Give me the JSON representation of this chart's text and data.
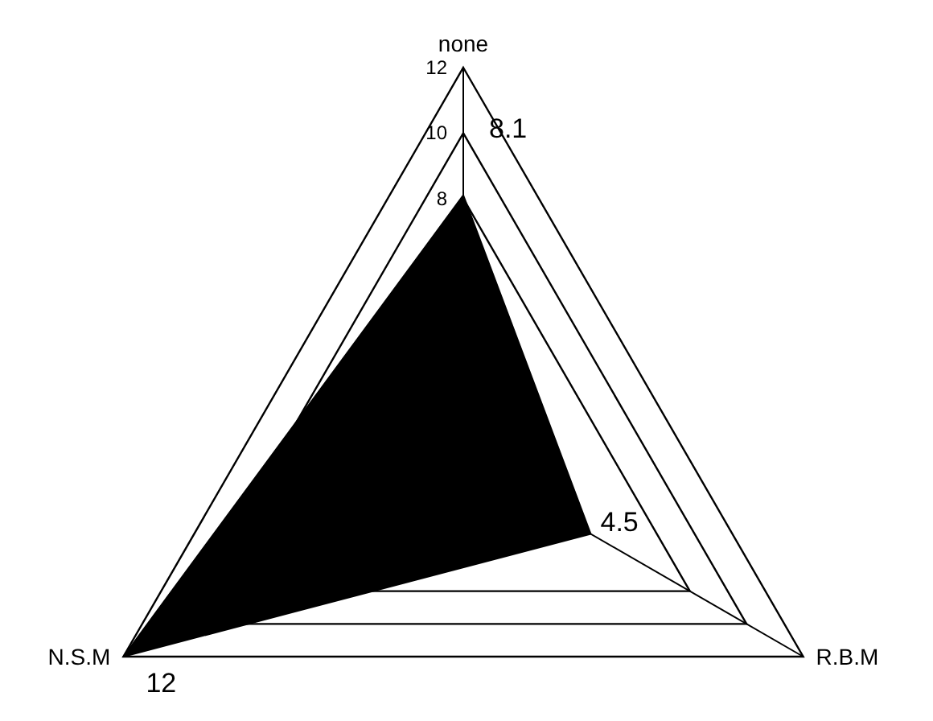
{
  "chart_data": {
    "type": "radar",
    "categories": [
      "none",
      "R.B.M",
      "N.S.M"
    ],
    "series": [
      {
        "color": "#000000",
        "values": [
          8.1,
          4.5,
          12
        ]
      }
    ],
    "ylim": [
      0,
      12
    ],
    "yticks": [
      8,
      10,
      12
    ],
    "data_labels": true,
    "grid": true
  }
}
